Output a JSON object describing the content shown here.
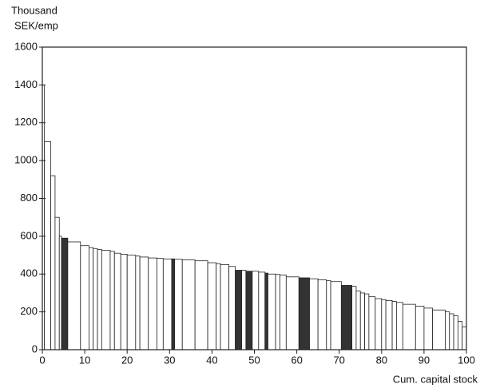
{
  "chart_data": {
    "type": "histogram",
    "ylabel": [
      "Thousand",
      "SEK/emp"
    ],
    "xlabel": "Cum. capital stock",
    "bins": [
      0,
      0.5,
      2,
      3,
      4,
      4.5,
      6,
      9,
      11,
      12,
      13,
      14,
      16,
      17,
      18.5,
      20,
      22,
      23,
      25,
      27,
      28.5,
      30.5,
      31.2,
      33,
      36,
      39,
      41,
      42,
      44,
      45.5,
      47,
      48,
      49.5,
      51,
      52.5,
      53.2,
      55,
      56,
      57.5,
      60.5,
      63,
      65,
      67,
      68,
      70.5,
      73,
      74,
      75,
      76,
      77,
      78.5,
      80,
      81,
      82.5,
      83.5,
      85,
      88,
      90,
      92,
      95,
      96,
      97,
      98,
      99,
      100
    ],
    "values": [
      1400,
      1100,
      920,
      700,
      600,
      590,
      570,
      550,
      540,
      535,
      530,
      525,
      520,
      510,
      505,
      500,
      495,
      490,
      485,
      483,
      480,
      480,
      478,
      475,
      470,
      460,
      455,
      450,
      440,
      420,
      420,
      415,
      415,
      410,
      405,
      400,
      398,
      395,
      385,
      380,
      375,
      370,
      365,
      360,
      340,
      335,
      310,
      300,
      295,
      280,
      270,
      265,
      260,
      255,
      250,
      240,
      230,
      220,
      210,
      200,
      190,
      180,
      150,
      120
    ],
    "colors": [
      "#fff",
      "#fff",
      "#fff",
      "#fff",
      "#fff",
      "#333",
      "#fff",
      "#fff",
      "#fff",
      "#fff",
      "#fff",
      "#fff",
      "#fff",
      "#fff",
      "#fff",
      "#fff",
      "#fff",
      "#fff",
      "#fff",
      "#fff",
      "#fff",
      "#333",
      "#fff",
      "#fff",
      "#fff",
      "#fff",
      "#fff",
      "#fff",
      "#fff",
      "#333",
      "#fff",
      "#333",
      "#fff",
      "#fff",
      "#333",
      "#fff",
      "#fff",
      "#fff",
      "#fff",
      "#333",
      "#fff",
      "#fff",
      "#fff",
      "#fff",
      "#333",
      "#fff",
      "#fff",
      "#fff",
      "#fff",
      "#fff",
      "#fff",
      "#fff",
      "#fff",
      "#fff",
      "#fff",
      "#fff",
      "#fff",
      "#fff",
      "#fff",
      "#fff",
      "#fff",
      "#fff",
      "#fff",
      "#fff"
    ],
    "xlim": [
      0,
      100
    ],
    "xticks": [
      0,
      10,
      20,
      30,
      40,
      50,
      60,
      70,
      80,
      90,
      100
    ],
    "ylim": [
      0,
      1600
    ],
    "yticks": [
      0,
      200,
      400,
      600,
      800,
      1000,
      1200,
      1400,
      1600
    ]
  }
}
